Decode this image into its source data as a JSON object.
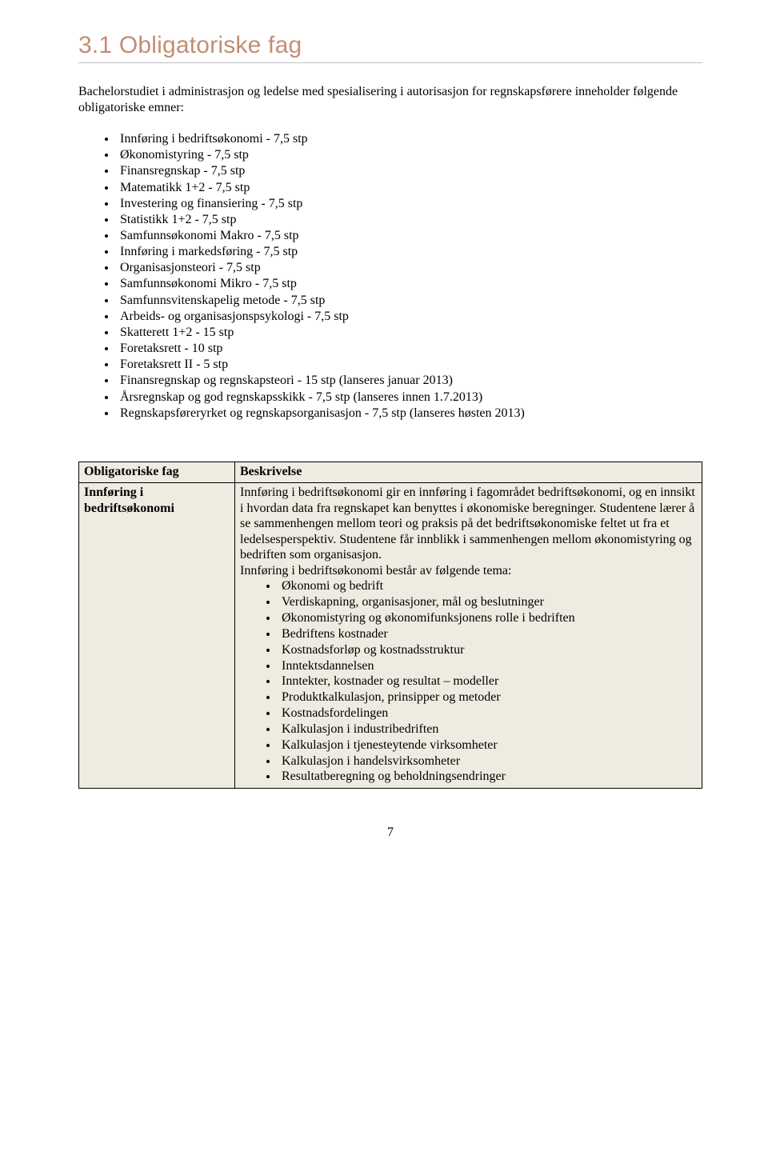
{
  "heading": "3.1 Obligatoriske fag",
  "intro": "Bachelorstudiet i administrasjon og ledelse med spesialisering i autorisasjon for regnskapsførere inneholder følgende obligatoriske emner:",
  "courses": [
    "Innføring i bedriftsøkonomi - 7,5 stp",
    "Økonomistyring - 7,5 stp",
    "Finansregnskap - 7,5 stp",
    "Matematikk 1+2 - 7,5 stp",
    "Investering og finansiering - 7,5 stp",
    "Statistikk 1+2 - 7,5 stp",
    "Samfunnsøkonomi Makro - 7,5 stp",
    "Innføring i markedsføring - 7,5 stp",
    "Organisasjonsteori - 7,5 stp",
    "Samfunnsøkonomi Mikro - 7,5 stp",
    "Samfunnsvitenskapelig metode - 7,5 stp",
    "Arbeids- og organisasjonspsykologi - 7,5 stp",
    "Skatterett 1+2 - 15 stp",
    "Foretaksrett - 10 stp",
    "Foretaksrett II - 5 stp",
    "Finansregnskap og regnskapsteori - 15 stp (lanseres januar 2013)",
    "Årsregnskap og god regnskapsskikk - 7,5 stp (lanseres innen 1.7.2013)",
    "Regnskapsføreryrket og regnskapsorganisasjon - 7,5 stp (lanseres høsten 2013)"
  ],
  "table": {
    "headers": {
      "left": "Obligatoriske fag",
      "right": "Beskrivelse"
    },
    "row": {
      "left": "Innføring i bedriftsøkonomi",
      "desc_para": "Innføring i bedriftsøkonomi gir en innføring i fagområdet bedriftsøkonomi, og en innsikt i hvordan data fra regnskapet kan benyttes i økonomiske beregninger. Studentene lærer å se sammenhengen mellom teori og praksis på det bedriftsøkonomiske feltet ut fra et ledelsesperspektiv. Studentene får innblikk i sammenhengen mellom økonomistyring og bedriften som organisasjon.",
      "desc_lead": "Innføring i bedriftsøkonomi består av følgende tema:",
      "topics": [
        "Økonomi og bedrift",
        "Verdiskapning, organisasjoner, mål og beslutninger",
        "Økonomistyring og økonomifunksjonens rolle i bedriften",
        "Bedriftens kostnader",
        "Kostnadsforløp og kostnadsstruktur",
        "Inntektsdannelsen",
        "Inntekter, kostnader og resultat – modeller",
        "Produktkalkulasjon, prinsipper og metoder",
        "Kostnadsfordelingen",
        "Kalkulasjon i industribedriften",
        "Kalkulasjon i tjenesteytende virksomheter",
        "Kalkulasjon i handelsvirksomheter",
        "Resultatberegning og beholdningsendringer"
      ]
    }
  },
  "page_number": "7"
}
